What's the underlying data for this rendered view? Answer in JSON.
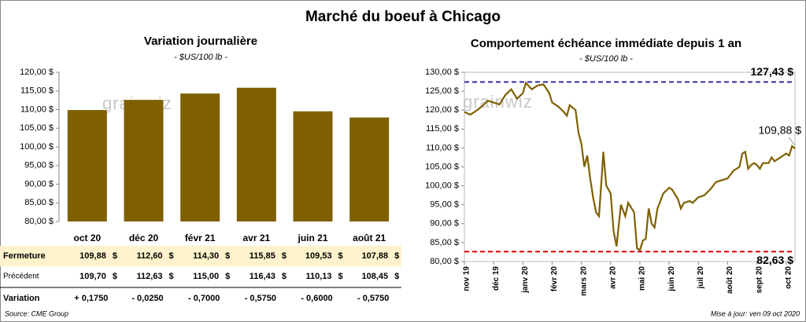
{
  "title": "Marché du boeuf à Chicago",
  "chart_data": [
    {
      "type": "bar",
      "title": "Variation journalière",
      "subtitle": "- $US/100 lb -",
      "categories": [
        "oct 20",
        "déc 20",
        "févr 21",
        "avr 21",
        "juin 21",
        "août 21"
      ],
      "values": [
        109.88,
        112.6,
        114.3,
        115.85,
        109.53,
        107.88
      ],
      "color": "#7f6000",
      "ylim": [
        80,
        120
      ],
      "yticks": [
        {
          "value": 80,
          "label": "80,00 $"
        },
        {
          "value": 85,
          "label": "85,00 $"
        },
        {
          "value": 90,
          "label": "90,00 $"
        },
        {
          "value": 95,
          "label": "95,00 $"
        },
        {
          "value": 100,
          "label": "100,00 $"
        },
        {
          "value": 105,
          "label": "105,00 $"
        },
        {
          "value": 110,
          "label": "110,00 $"
        },
        {
          "value": 115,
          "label": "115,00 $"
        },
        {
          "value": 120,
          "label": "120,00 $"
        }
      ],
      "watermark": "grainwiz"
    },
    {
      "type": "line",
      "title": "Comportement  échéance immédiate depuis 1 an",
      "subtitle": "- $US/100 lb -",
      "x": [
        0,
        0.2,
        0.4,
        0.6,
        0.8,
        1.0,
        1.2,
        1.4,
        1.6,
        1.8,
        2.0,
        2.1,
        2.3,
        2.5,
        2.7,
        2.9,
        3.0,
        3.2,
        3.4,
        3.5,
        3.6,
        3.8,
        3.9,
        4.0,
        4.1,
        4.2,
        4.3,
        4.4,
        4.5,
        4.6,
        4.7,
        4.75,
        4.85,
        5.0,
        5.1,
        5.2,
        5.35,
        5.5,
        5.6,
        5.8,
        5.9,
        6.0,
        6.1,
        6.2,
        6.3,
        6.4,
        6.5,
        6.6,
        6.7,
        6.8,
        7.0,
        7.1,
        7.3,
        7.4,
        7.5,
        7.7,
        7.8,
        8.0,
        8.2,
        8.4,
        8.6,
        8.8,
        9.0,
        9.2,
        9.4,
        9.5,
        9.6,
        9.7,
        9.8,
        9.9,
        10.0,
        10.1,
        10.2,
        10.4,
        10.5,
        10.6,
        10.8,
        11.0,
        11.1,
        11.2,
        11.3
      ],
      "values": [
        119.5,
        118.8,
        119.8,
        121,
        122.5,
        122,
        121.5,
        124,
        125.5,
        123,
        124.5,
        127.2,
        125.5,
        126.5,
        126.8,
        124.5,
        122,
        121,
        119.5,
        118.5,
        121.3,
        120,
        114,
        111,
        105,
        108,
        102,
        97,
        93,
        92,
        103,
        109,
        100,
        98,
        88,
        84,
        95,
        92,
        95.5,
        93,
        83.5,
        83,
        85.5,
        86,
        94,
        90,
        89,
        94,
        96,
        98,
        99.5,
        99,
        96.5,
        94,
        95.5,
        96,
        95.5,
        97,
        97.5,
        99,
        101,
        101.5,
        102,
        104,
        105,
        108.5,
        109,
        104.5,
        105.5,
        106,
        105.5,
        104.5,
        106,
        106,
        107.5,
        106.5,
        107.5,
        108.5,
        108,
        110.5,
        109.88
      ],
      "color": "#7f6000",
      "xlim": [
        0,
        11.3
      ],
      "xticks": [
        {
          "value": 0,
          "label": "nov 19"
        },
        {
          "value": 1,
          "label": "déc 19"
        },
        {
          "value": 2,
          "label": "janv 20"
        },
        {
          "value": 3,
          "label": "févr 20"
        },
        {
          "value": 4,
          "label": "mars 20"
        },
        {
          "value": 5,
          "label": "avr 20"
        },
        {
          "value": 6,
          "label": "mai 20"
        },
        {
          "value": 7,
          "label": "juin 20"
        },
        {
          "value": 8,
          "label": "juil 20"
        },
        {
          "value": 9,
          "label": "août 20"
        },
        {
          "value": 10,
          "label": "sept 20"
        },
        {
          "value": 11,
          "label": "oct 20"
        }
      ],
      "ylim": [
        80,
        130
      ],
      "yticks": [
        {
          "value": 80,
          "label": "80,00 $"
        },
        {
          "value": 85,
          "label": "85,00 $"
        },
        {
          "value": 90,
          "label": "90,00 $"
        },
        {
          "value": 95,
          "label": "95,00 $"
        },
        {
          "value": 100,
          "label": "100,00 $"
        },
        {
          "value": 105,
          "label": "105,00 $"
        },
        {
          "value": 110,
          "label": "110,00 $"
        },
        {
          "value": 115,
          "label": "115,00 $"
        },
        {
          "value": 120,
          "label": "120,00 $"
        },
        {
          "value": 125,
          "label": "125,00 $"
        },
        {
          "value": 130,
          "label": "130,00 $"
        }
      ],
      "reference_lines": [
        {
          "value": 127.43,
          "label": "127,43 $",
          "color": "#2e2ea8"
        },
        {
          "value": 82.63,
          "label": "82,63 $",
          "color": "#e00000"
        }
      ],
      "last_label": "109,88 $",
      "watermark": "grainwiz"
    }
  ],
  "table": {
    "unit": "$",
    "rows": [
      {
        "label": "Fermeture",
        "cells": [
          "109,88",
          "112,60",
          "114,30",
          "115,85",
          "109,53",
          "107,88"
        ],
        "with_unit": true
      },
      {
        "label": "Précédent",
        "cells": [
          "109,70",
          "112,63",
          "115,00",
          "116,43",
          "110,13",
          "108,45"
        ],
        "with_unit": true
      },
      {
        "label": "Variation",
        "cells": [
          "+ 0,1750",
          "- 0,0250",
          "- 0,7000",
          "- 0,5750",
          "- 0,6000",
          "- 0,5750"
        ],
        "with_unit": false
      }
    ]
  },
  "footer": {
    "source": "Source: CME Group",
    "updated": "Mise à jour: ven 09 oct 2020"
  }
}
